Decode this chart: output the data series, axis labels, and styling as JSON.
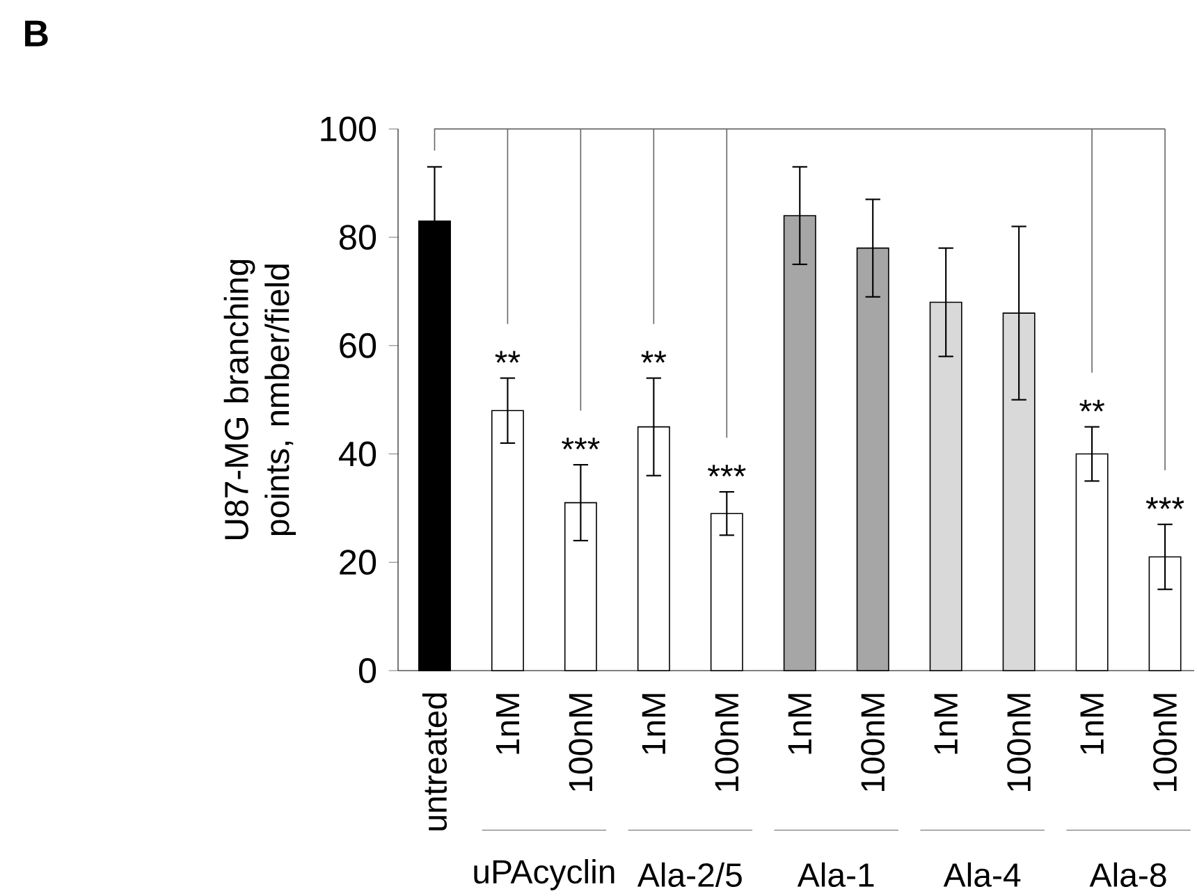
{
  "chart_data": {
    "type": "bar",
    "title": "B",
    "ylabel": "U87-MG branching points, nmber/field",
    "categories": [
      "untreated",
      "1nM",
      "100nM",
      "1nM",
      "100nM",
      "1nM",
      "100nM",
      "1nM",
      "100nM",
      "1nM",
      "100nM"
    ],
    "values": [
      83,
      48,
      31,
      45,
      29,
      84,
      78,
      68,
      66,
      40,
      21
    ],
    "errors": [
      10,
      6,
      7,
      9,
      4,
      9,
      9,
      10,
      16,
      5,
      6
    ],
    "value_labels": [
      null,
      "**",
      "***",
      "**",
      "***",
      null,
      null,
      null,
      null,
      "**",
      "***"
    ],
    "colors": [
      "#000000",
      "#ffffff",
      "#ffffff",
      "#ffffff",
      "#ffffff",
      "#a6a6a6",
      "#a6a6a6",
      "#d9d9d9",
      "#d9d9d9",
      "#ffffff",
      "#ffffff"
    ],
    "annotations": [
      "uPAcyclin",
      "Ala-2/5",
      "Ala-1",
      "Ala-4",
      "Ala-8"
    ],
    "ylim": [
      0,
      100
    ],
    "yticks": [
      0,
      20,
      40,
      60,
      80,
      100
    ]
  }
}
